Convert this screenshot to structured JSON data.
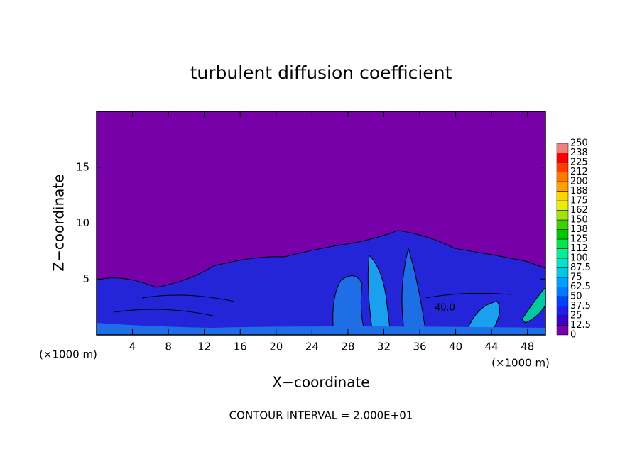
{
  "chart_data": {
    "type": "contour",
    "title": "turbulent diffusion coefficient",
    "x_label": "X−coordinate",
    "y_label": "Z−coordinate",
    "x_unit_label": "(×1000 m)",
    "xlim": [
      0,
      50
    ],
    "xticks": [
      4,
      8,
      12,
      16,
      20,
      24,
      28,
      32,
      36,
      40,
      44,
      48
    ],
    "ylim": [
      0,
      20
    ],
    "yticks": [
      5,
      10,
      15
    ],
    "contour_label": "40.0",
    "footer": "CONTOUR INTERVAL = 2.000E+01",
    "colorbar": {
      "levels": [
        0,
        12.5,
        25,
        37.5,
        50,
        62.5,
        75,
        87.5,
        100,
        112,
        125,
        138,
        150,
        162,
        175,
        188,
        200,
        212,
        225,
        238,
        250
      ],
      "colors": [
        "#7800a8",
        "#3c00c8",
        "#1e1ee6",
        "#0040ff",
        "#0078ff",
        "#00a0ff",
        "#00c8e6",
        "#00e6c8",
        "#00f0a0",
        "#00e64b",
        "#00c800",
        "#3cd200",
        "#a0e600",
        "#e6f000",
        "#ffd200",
        "#ffa000",
        "#ff7800",
        "#ff3c00",
        "#ff0000",
        "#f08080"
      ]
    }
  }
}
